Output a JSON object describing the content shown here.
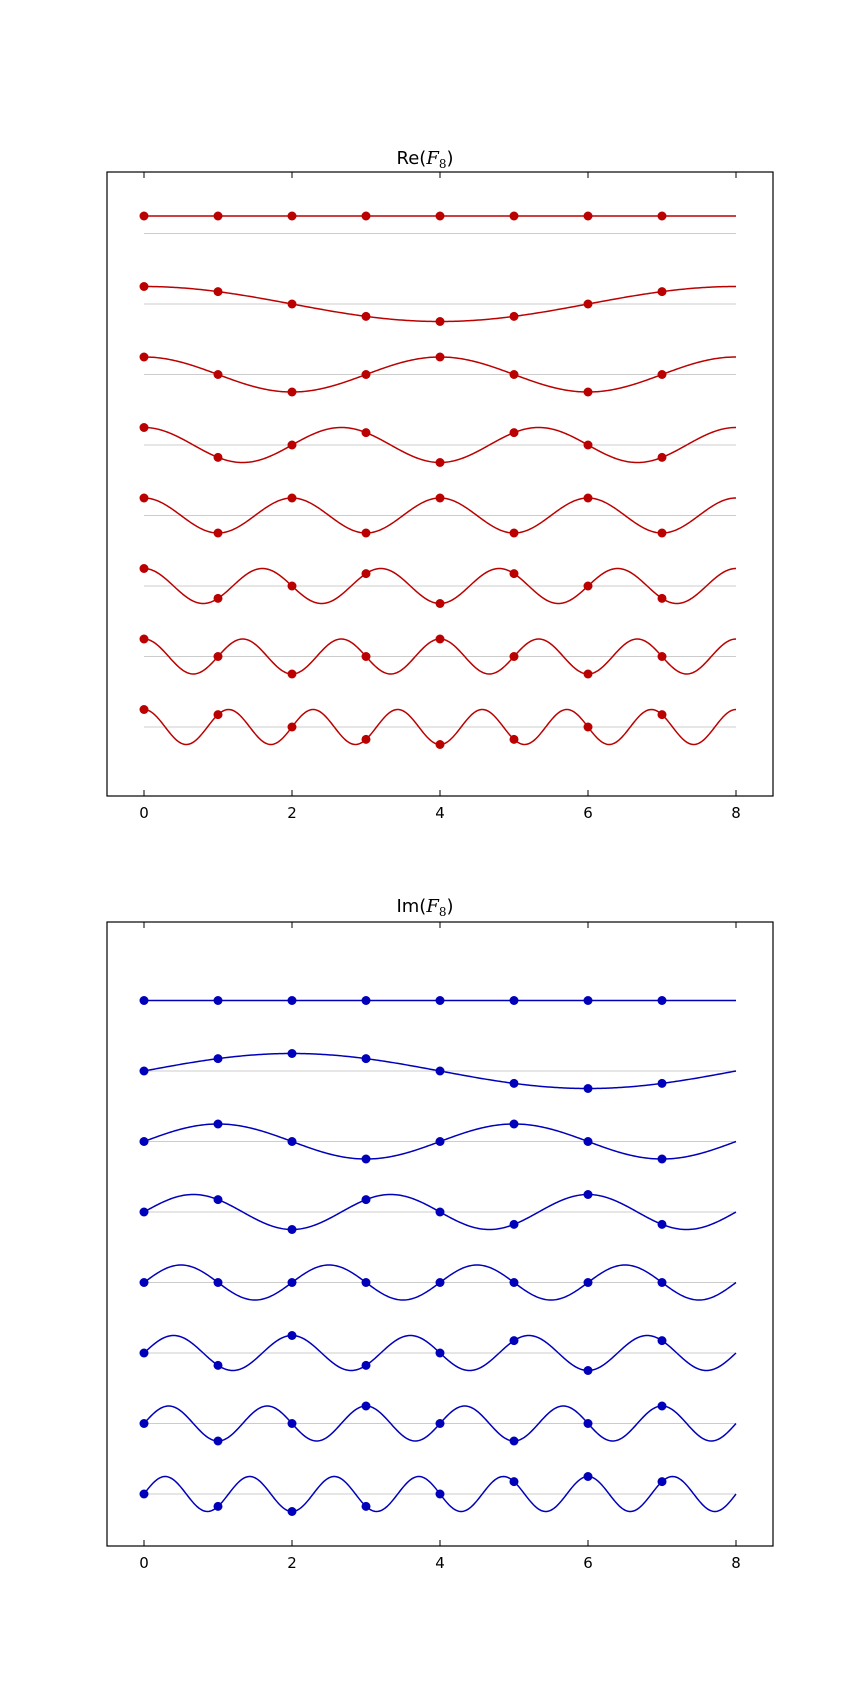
{
  "chart_data": [
    {
      "type": "line",
      "title": "Re(F8)",
      "title_parts": {
        "prefix": "Re(",
        "symbol": "F",
        "subscript": "8",
        "suffix": ")"
      },
      "color": "#bb0000",
      "baseline_color": "#cccccc",
      "function": "cos",
      "N": 8,
      "rows": [
        0,
        1,
        2,
        3,
        4,
        5,
        6,
        7
      ],
      "sample_x": [
        0,
        1,
        2,
        3,
        4,
        5,
        6,
        7
      ],
      "xlim": [
        -0.5,
        8.5
      ],
      "xticks": [
        "0",
        "2",
        "4",
        "6",
        "8"
      ],
      "xtick_values": [
        0,
        2,
        4,
        6,
        8
      ],
      "amplitude": 0.25,
      "grid": false,
      "legend": "none"
    },
    {
      "type": "line",
      "title": "Im(F8)",
      "title_parts": {
        "prefix": "Im(",
        "symbol": "F",
        "subscript": "8",
        "suffix": ")"
      },
      "color": "#0000bb",
      "baseline_color": "#cccccc",
      "function": "sin",
      "N": 8,
      "rows": [
        0,
        1,
        2,
        3,
        4,
        5,
        6,
        7
      ],
      "sample_x": [
        0,
        1,
        2,
        3,
        4,
        5,
        6,
        7
      ],
      "xlim": [
        -0.5,
        8.5
      ],
      "xticks": [
        "0",
        "2",
        "4",
        "6",
        "8"
      ],
      "xtick_values": [
        0,
        2,
        4,
        6,
        8
      ],
      "amplitude": 0.25,
      "grid": false,
      "legend": "none"
    }
  ]
}
